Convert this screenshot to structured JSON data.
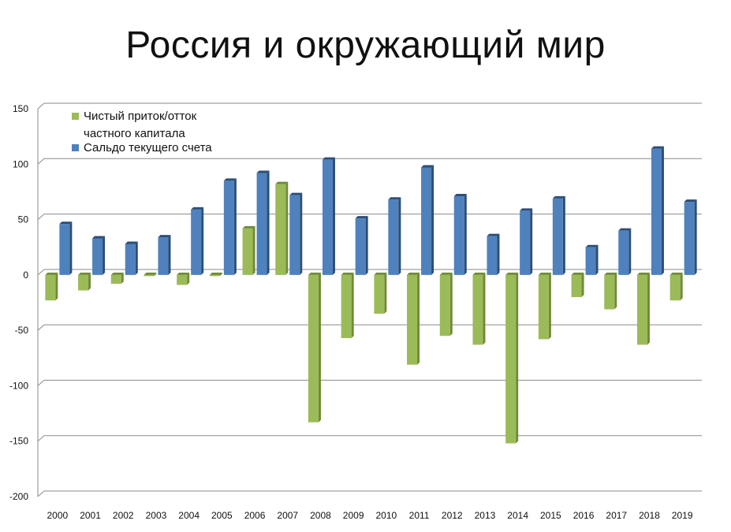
{
  "slide": {
    "title": "Россия и окружающий мир"
  },
  "colors": {
    "green_face": "#9bbb59",
    "green_side": "#6f8a36",
    "blue_face": "#4f81bd",
    "blue_side": "#2c4d75",
    "grid": "#8a8a8a"
  },
  "chart_data": {
    "type": "bar",
    "title": "",
    "xlabel": "",
    "ylabel": "",
    "ylim": [
      -200,
      150
    ],
    "yticks": [
      150,
      100,
      50,
      0,
      -50,
      -100,
      -150,
      -200
    ],
    "grid": true,
    "legend_position": "top-left",
    "categories": [
      "2000",
      "2001",
      "2002",
      "2003",
      "2004",
      "2005",
      "2006",
      "2007",
      "2008",
      "2009",
      "2010",
      "2011",
      "2012",
      "2013",
      "2014",
      "2015",
      "2016",
      "2017",
      "2018",
      "2019"
    ],
    "series": [
      {
        "name": "Чистый приток/отток частного капитала",
        "legend_lines": [
          "Чистый приток/отток",
          "частного капитала"
        ],
        "color": "#9bbb59",
        "values": [
          -23,
          -14,
          -8,
          -1,
          -9,
          0,
          42,
          82,
          -133,
          -57,
          -35,
          -81,
          -55,
          -63,
          -152,
          -58,
          -20,
          -31,
          -63,
          -23
        ]
      },
      {
        "name": "Сальдо текущего счета",
        "legend_lines": [
          "Сальдо текущего счета"
        ],
        "color": "#4f81bd",
        "values": [
          46,
          33,
          28,
          34,
          59,
          85,
          92,
          72,
          104,
          51,
          68,
          97,
          71,
          35,
          58,
          69,
          25,
          40,
          114,
          66
        ]
      }
    ]
  }
}
